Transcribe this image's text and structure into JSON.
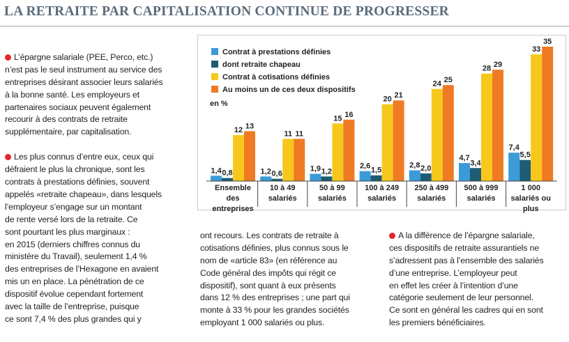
{
  "header": {
    "title": "LA RETRAITE PAR CAPITALISATION CONTINUE DE PROGRESSER"
  },
  "columns": [
    {
      "paragraphs": [
        "L’épargne salariale (PEE, Perco, etc.)\nn’est pas le seul instrument au service des\nentreprises désirant associer leurs salariés\nà la bonne santé. Les employeurs et\npartenaires sociaux peuvent également\nrecourir à des contrats de retraite\nsupplémentaire, par capitalisation.",
        "Les plus connus d’entre eux, ceux qui\ndéfraient le plus la chronique, sont les\ncontrats à prestations définies, souvent\nappelés «retraite chapeau», dans lesquels\nl’employeur s’engage sur un montant\nde rente versé lors de la retraite. Ce\nsont pourtant les plus marginaux :\nen 2015 (derniers chiffres connus du\nministère du Travail), seulement 1,4 %\ndes entreprises de l’Hexagone en avaient\nmis un en place. La pénétration de ce\ndispositif évolue cependant fortement\navec la taille de l’entreprise, puisque\nce sont 7,4 % des plus grandes qui y"
      ]
    },
    {
      "paragraphs": [
        "ont recours. Les contrats de retraite à\ncotisations définies, plus connus sous le\nnom de «article 83» (en référence au\nCode général des impôts qui régit ce\ndispositif), sont quant à eux présents\ndans 12 % des entreprises ; une part qui\nmonte à 33 % pour les grandes sociétés\nemployant 1 000 salariés ou plus."
      ]
    },
    {
      "paragraphs": [
        "A la différence de l’épargne salariale,\nces dispositifs de retraite assurantiels ne\ns’adressent pas à l’ensemble des salariés\nd’une entreprise. L’employeur peut\nen effet les créer à l’intention d’une\ncatégorie seulement de leur personnel.\nCe sont en général les cadres qui en sont\nles premiers bénéficiaires."
      ]
    }
  ],
  "chart_data": {
    "type": "bar",
    "unit_label": "en %",
    "categories": [
      "Ensemble des\nentreprises",
      "10 à 49\nsalariés",
      "50 à 99\nsalariés",
      "100 à 249\nsalariés",
      "250 à 499\nsalariés",
      "500 à 999\nsalariés",
      "1 000\nsalariés ou plus"
    ],
    "series": [
      {
        "name": "Contrat à prestations définies",
        "color": "#3a9bd8",
        "values": [
          1.4,
          1.2,
          1.9,
          2.6,
          2.8,
          4.7,
          7.4
        ],
        "value_labels": [
          "1,4",
          "1,2",
          "1,9",
          "2,6",
          "2,8",
          "4,7",
          "7,4"
        ]
      },
      {
        "name": "dont retraite chapeau",
        "color": "#1d5c74",
        "values": [
          0.8,
          0.6,
          1.2,
          1.5,
          2.0,
          3.4,
          5.5
        ],
        "value_labels": [
          "0,8",
          "0,6",
          "1,2",
          "1,5",
          "2,0",
          "3,4",
          "5,5"
        ]
      },
      {
        "name": "Contrat à cotisations définies",
        "color": "#f7c81b",
        "values": [
          12,
          11,
          15,
          20,
          24,
          28,
          33
        ]
      },
      {
        "name": "Au moins un de ces deux dispositifs",
        "color": "#ef7a24",
        "values": [
          13,
          11,
          16,
          21,
          25,
          29,
          35
        ]
      }
    ]
  }
}
